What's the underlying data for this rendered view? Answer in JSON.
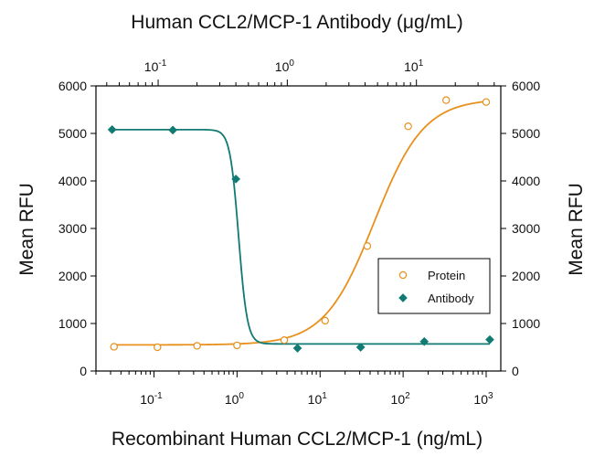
{
  "chart_data": {
    "type": "scatter",
    "title": "Human CCL2/MCP-1 Antibody (μg/mL)",
    "xlabel": "Recombinant Human CCL2/MCP-1 (ng/mL)",
    "ylabel_left": "Mean RFU",
    "ylabel_right": "Mean RFU",
    "x_scale": "log",
    "xlim": [
      0.02,
      1500
    ],
    "ylim": [
      0,
      6000
    ],
    "y_ticks": [
      "0",
      "1000",
      "2000",
      "3000",
      "4000",
      "5000",
      "6000"
    ],
    "x_ticks_bottom": [
      {
        "base": "10",
        "exp": "-1",
        "value": 0.1
      },
      {
        "base": "10",
        "exp": "0",
        "value": 1
      },
      {
        "base": "10",
        "exp": "1",
        "value": 10
      },
      {
        "base": "10",
        "exp": "2",
        "value": 100
      },
      {
        "base": "10",
        "exp": "3",
        "value": 1000
      }
    ],
    "top_axis": {
      "xlim": [
        0.033,
        45
      ],
      "ticks": [
        {
          "base": "10",
          "exp": "-1",
          "value": 0.1
        },
        {
          "base": "10",
          "exp": "0",
          "value": 1
        },
        {
          "base": "10",
          "exp": "1",
          "value": 10
        }
      ]
    },
    "legend_position": "bottom-right",
    "grid": false,
    "series": [
      {
        "name": "Protein",
        "color": "#E8901C",
        "marker": "open-circle",
        "axis": "bottom",
        "points": [
          {
            "x": 0.033,
            "y": 510
          },
          {
            "x": 0.11,
            "y": 500
          },
          {
            "x": 0.33,
            "y": 530
          },
          {
            "x": 1.0,
            "y": 540
          },
          {
            "x": 3.7,
            "y": 650
          },
          {
            "x": 11.5,
            "y": 1060
          },
          {
            "x": 37,
            "y": 2630
          },
          {
            "x": 115,
            "y": 5150
          },
          {
            "x": 330,
            "y": 5700
          },
          {
            "x": 1000,
            "y": 5660
          }
        ],
        "fit": {
          "bottom": 550,
          "top": 5730,
          "ec50": 45,
          "hill": 1.45
        }
      },
      {
        "name": "Antibody",
        "color": "#117A73",
        "marker": "filled-diamond",
        "axis": "top",
        "points": [
          {
            "x": 0.044,
            "y": 5080
          },
          {
            "x": 0.13,
            "y": 5070
          },
          {
            "x": 0.4,
            "y": 4040
          },
          {
            "x": 1.2,
            "y": 480
          },
          {
            "x": 3.7,
            "y": 500
          },
          {
            "x": 11.5,
            "y": 620
          },
          {
            "x": 37,
            "y": 660
          }
        ],
        "fit": {
          "top": 5080,
          "bottom": 570,
          "ic50": 0.42,
          "hill": 13
        }
      }
    ]
  }
}
